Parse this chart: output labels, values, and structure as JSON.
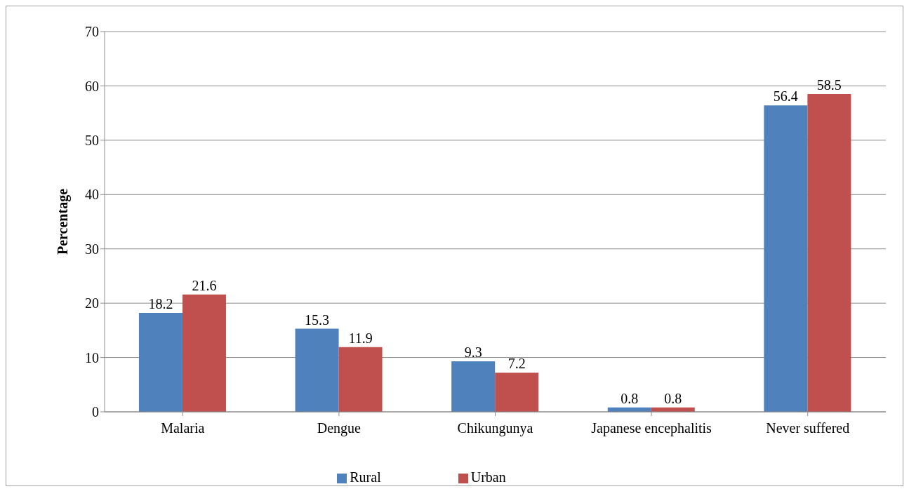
{
  "chart_data": {
    "type": "bar",
    "ylabel": "Percentage",
    "categories": [
      "Malaria",
      "Dengue",
      "Chikungunya",
      "Japanese encephalitis",
      "Never suffered"
    ],
    "series": [
      {
        "name": "Rural",
        "color": "#4f81bd",
        "values": [
          18.2,
          15.3,
          9.3,
          0.8,
          56.4
        ]
      },
      {
        "name": "Urban",
        "color": "#c0504d",
        "values": [
          21.6,
          11.9,
          7.2,
          0.8,
          58.5
        ]
      }
    ],
    "ylim": [
      0,
      70
    ],
    "yticks": [
      0,
      10,
      20,
      30,
      40,
      50,
      60,
      70
    ],
    "grid": "y",
    "legend": "bottom",
    "data_labels": true
  }
}
